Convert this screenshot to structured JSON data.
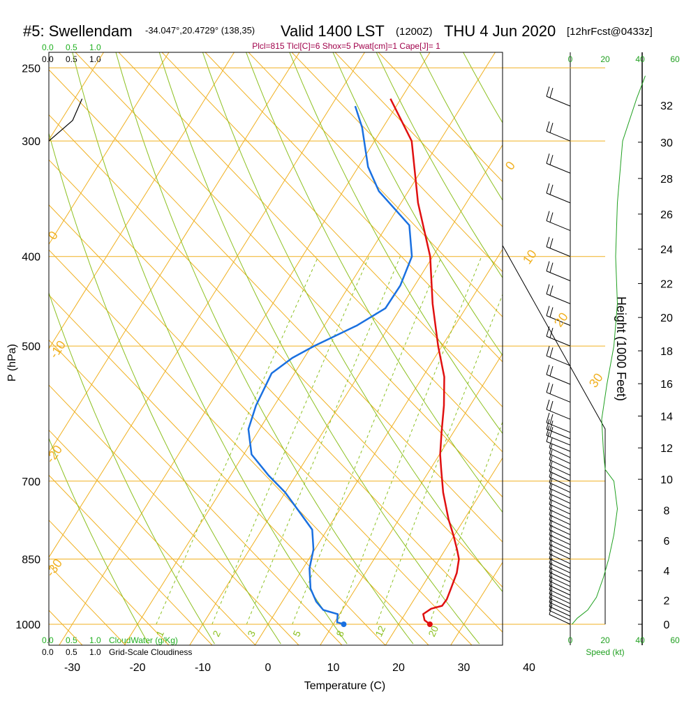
{
  "header": {
    "station": "#5: Swellendam",
    "coords": "-34.047°,20.4729° (138,35)",
    "valid": "Valid 1400 LST",
    "zulu": "(1200Z)",
    "date": "THU 4 Jun 2020",
    "forecast": "[12hrFcst@0433z]",
    "indices": "Plcl=815 Tlcl[C]=6 Shox=5 Pwat[cm]=1 Cape[J]= 1"
  },
  "colors": {
    "isotherm": "#f0b020",
    "dry_adiabat": "#8cc020",
    "mixing_ratio": "#8cc020",
    "temperature": "#e01010",
    "dewpoint": "#1a70e0",
    "green_text": "#20b020",
    "title_red": "#a0004a",
    "cloud_line": "#000000",
    "wind_speed": "#20a020"
  },
  "chart_data": [
    {
      "type": "line",
      "name": "skew-t",
      "xlabel": "Temperature (C)",
      "ylabel": "P (hPa)",
      "x_ticks": [
        -30,
        -20,
        -10,
        0,
        10,
        20,
        30,
        40
      ],
      "pressure_ticks": [
        250,
        300,
        400,
        500,
        700,
        850,
        1000
      ],
      "isotherm_labels": [
        {
          "value": "0"
        },
        {
          "value": "10"
        },
        {
          "value": "20"
        },
        {
          "value": "30"
        },
        {
          "value": "-10"
        },
        {
          "value": "-20"
        },
        {
          "value": "-30"
        },
        {
          "value": "0"
        }
      ],
      "mixing_ratio_labels": [
        "1",
        "2",
        "3",
        "5",
        "8",
        "12",
        "20"
      ],
      "series": [
        {
          "kind": "temperature",
          "points": [
            [
              24.8,
              1000
            ],
            [
              23.6,
              990
            ],
            [
              22.8,
              975
            ],
            [
              23.5,
              962
            ],
            [
              24.9,
              955
            ],
            [
              25.0,
              940
            ],
            [
              24.6,
              915
            ],
            [
              24.0,
              880
            ],
            [
              23.0,
              850
            ],
            [
              21.8,
              830
            ],
            [
              19.8,
              800
            ],
            [
              17.6,
              770
            ],
            [
              14.2,
              720
            ],
            [
              11.7,
              680
            ],
            [
              10.1,
              655
            ],
            [
              8.2,
              620
            ],
            [
              6.0,
              580
            ],
            [
              3.3,
              540
            ],
            [
              -0.6,
              500
            ],
            [
              -5.5,
              450
            ],
            [
              -10.4,
              400
            ],
            [
              -17.4,
              350
            ],
            [
              -24.3,
              300
            ],
            [
              -31.6,
              270
            ]
          ]
        },
        {
          "kind": "dewpoint",
          "points": [
            [
              11.6,
              1000
            ],
            [
              10.4,
              995
            ],
            [
              9.7,
              975
            ],
            [
              7.1,
              965
            ],
            [
              5.2,
              945
            ],
            [
              3.1,
              915
            ],
            [
              1.0,
              870
            ],
            [
              -0.2,
              830
            ],
            [
              -2.3,
              790
            ],
            [
              -5.5,
              760
            ],
            [
              -10.0,
              720
            ],
            [
              -14.2,
              690
            ],
            [
              -18.8,
              655
            ],
            [
              -21.7,
              615
            ],
            [
              -22.8,
              580
            ],
            [
              -23.5,
              535
            ],
            [
              -21.8,
              515
            ],
            [
              -19.6,
              500
            ],
            [
              -15.0,
              475
            ],
            [
              -12.3,
              455
            ],
            [
              -12.2,
              430
            ],
            [
              -13.2,
              400
            ],
            [
              -16.6,
              370
            ],
            [
              -24.5,
              340
            ],
            [
              -28.5,
              320
            ],
            [
              -33.2,
              290
            ],
            [
              -36.3,
              275
            ]
          ]
        },
        {
          "kind": "cloudwater",
          "points": [
            [
              0.0,
              300
            ],
            [
              0.25,
              285
            ],
            [
              0.35,
              270
            ]
          ]
        }
      ]
    },
    {
      "type": "line",
      "name": "wind-speed-profile",
      "xlabel": "Speed (kt)",
      "x_ticks": [
        0,
        20,
        40,
        60
      ],
      "height_label": "Height (1000 Feet)",
      "height_ticks": [
        0,
        2,
        4,
        6,
        8,
        10,
        12,
        14,
        16,
        18,
        20,
        22,
        24,
        26,
        28,
        30,
        32
      ],
      "series": [
        {
          "kind": "speed",
          "points": [
            [
              1,
              1000
            ],
            [
              4,
              985
            ],
            [
              10,
              965
            ],
            [
              15,
              935
            ],
            [
              19,
              890
            ],
            [
              22,
              850
            ],
            [
              25,
              800
            ],
            [
              27,
              750
            ],
            [
              25,
              700
            ],
            [
              20,
              680
            ],
            [
              19,
              650
            ],
            [
              18,
              600
            ],
            [
              21,
              550
            ],
            [
              25,
              500
            ],
            [
              27,
              450
            ],
            [
              26,
              400
            ],
            [
              27,
              350
            ],
            [
              30,
              300
            ],
            [
              38,
              270
            ],
            [
              43,
              255
            ]
          ]
        }
      ]
    }
  ],
  "axis_labels": {
    "top_green_ticks": [
      "0.0",
      "0.5",
      "1.0"
    ],
    "top_black_ticks": [
      "0.0",
      "0.5",
      "1.0"
    ],
    "bottom_green_ticks": [
      "0.0",
      "0.5",
      "1.0"
    ],
    "bottom_black_ticks": [
      "0.0",
      "0.5",
      "1.0"
    ],
    "cloudwater_label": "CloudWater (g/Kg)",
    "cloudiness_label": "Grid-Scale Cloudiness"
  }
}
